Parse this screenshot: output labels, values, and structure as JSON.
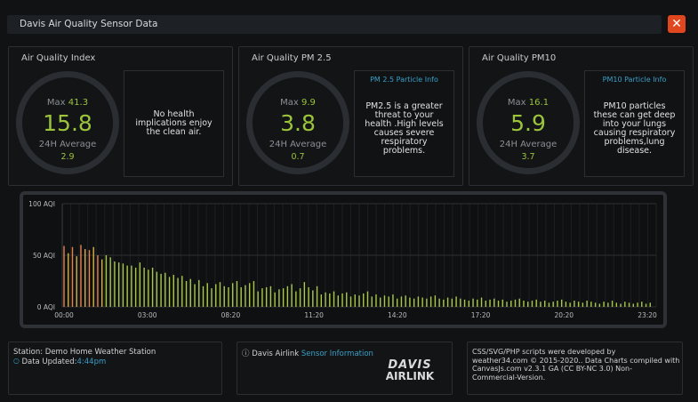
{
  "window": {
    "title": "Davis Air Quality Sensor Data",
    "close_label": "✕"
  },
  "panels": [
    {
      "title": "Air Quality Index",
      "max_label": "Max",
      "max_value": "41.3",
      "value": "15.8",
      "avg_label": "24H Average",
      "avg_value": "2.9",
      "info_title": "",
      "info_text": [
        "No health",
        "implications enjoy",
        "the clean air."
      ]
    },
    {
      "title": "Air Quality PM 2.5",
      "max_label": "Max",
      "max_value": "9.9",
      "value": "3.8",
      "avg_label": "24H Average",
      "avg_value": "0.7",
      "info_title": "PM 2.5 Particle Info",
      "info_text": [
        "PM2.5 is a greater",
        "threat to your",
        "health .High levels",
        "causes severe",
        "respiratory",
        "problems."
      ]
    },
    {
      "title": "Air Quality PM10",
      "max_label": "Max",
      "max_value": "16.1",
      "value": "5.9",
      "avg_label": "24H Average",
      "avg_value": "3.7",
      "info_title": "PM10 Particle Info",
      "info_text": [
        "PM10 particles",
        "these can get deep",
        "into your lungs",
        "causing respiratory",
        "problems,lung",
        "disease."
      ]
    }
  ],
  "chart_data": {
    "type": "bar",
    "title": "",
    "ylabel": "AQI",
    "ylim": [
      0,
      100
    ],
    "y_ticks": [
      "100 AQI",
      "50 AQI",
      "0 AQI"
    ],
    "x_ticks": [
      "00:00",
      "03:00",
      "08:20",
      "11:20",
      "14:20",
      "17:20",
      "20:20",
      "23:20"
    ],
    "values": [
      59,
      52,
      58,
      49,
      60,
      56,
      55,
      58,
      50,
      46,
      50,
      48,
      44,
      43,
      42,
      40,
      40,
      38,
      43,
      38,
      36,
      38,
      34,
      32,
      33,
      29,
      31,
      28,
      30,
      25,
      27,
      22,
      26,
      20,
      23,
      18,
      22,
      24,
      20,
      19,
      23,
      25,
      19,
      21,
      23,
      25,
      15,
      18,
      19,
      20,
      14,
      17,
      18,
      20,
      22,
      15,
      18,
      24,
      19,
      16,
      20,
      12,
      14,
      13,
      15,
      11,
      13,
      14,
      10,
      12,
      11,
      13,
      15,
      10,
      12,
      9,
      11,
      10,
      12,
      8,
      10,
      11,
      9,
      8,
      10,
      9,
      8,
      10,
      11,
      8,
      7,
      9,
      8,
      10,
      8,
      7,
      6,
      8,
      7,
      9,
      6,
      7,
      8,
      6,
      7,
      5,
      6,
      7,
      8,
      6,
      5,
      6,
      7,
      5,
      6,
      4,
      5,
      6,
      7,
      5,
      4,
      6,
      5,
      4,
      6,
      5,
      4,
      3,
      5,
      4,
      6,
      4,
      3,
      5,
      4,
      3,
      4,
      5,
      3,
      4
    ],
    "colors": {
      "high": "#e8834a",
      "mid": "#d6b04a",
      "low": "#a9c94a"
    }
  },
  "footer": {
    "station_label": "Station: Demo Home Weather Station",
    "updated_label": "Data Updated:",
    "updated_time": "4:44pm",
    "airlink_label": "Davis Airlink",
    "sensor_link": "Sensor Information",
    "logo_top": "DAVIS",
    "logo_bottom": "AIRLINK",
    "credits": [
      "CSS/SVG/PHP scripts were developed by",
      "weather34.com © 2015-2020.. Data Charts compiled with",
      "CanvasJs.com v2.3.1 GA (CC BY-NC 3.0) Non-",
      "Commercial-Version."
    ]
  }
}
